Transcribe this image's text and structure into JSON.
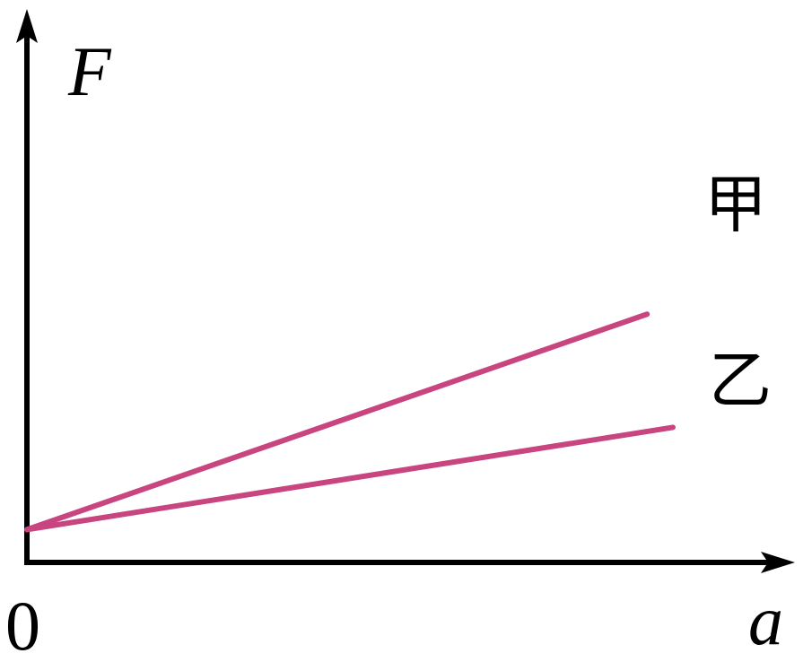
{
  "chart_data": {
    "type": "line",
    "title": "",
    "xlabel": "a",
    "ylabel": "F",
    "origin_label": "0",
    "x_range": [
      0,
      10
    ],
    "y_range": [
      0,
      10
    ],
    "grid": false,
    "line_color": "#c8457f",
    "axis_color": "#000000",
    "series": [
      {
        "name": "甲",
        "x": [
          0,
          9.6
        ],
        "y": [
          0.9,
          6.8
        ]
      },
      {
        "name": "乙",
        "x": [
          0,
          10.0
        ],
        "y": [
          0.9,
          3.7
        ]
      }
    ]
  }
}
